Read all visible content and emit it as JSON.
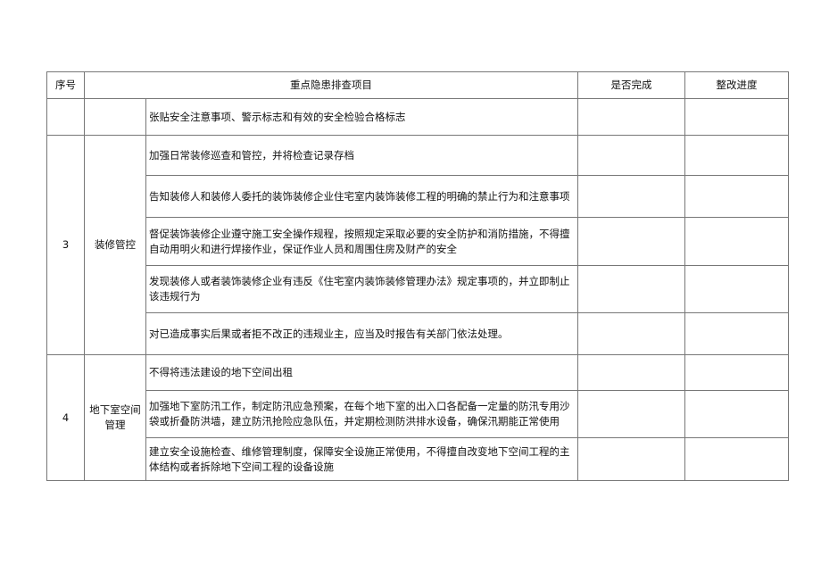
{
  "header": {
    "seq": "序号",
    "item": "重点隐患排查项目",
    "done": "是否完成",
    "progress": "整改进度"
  },
  "row_top": {
    "item": "张贴安全注意事项、警示标志和有效的安全检验合格标志"
  },
  "section3": {
    "seq": "3",
    "category": "装修管控",
    "items": [
      "加强日常装修巡查和管控，并将检查记录存档",
      "告知装修人和装修人委托的装饰装修企业住宅室内装饰装修工程的明确的禁止行为和注意事项",
      "督促装饰装修企业遵守施工安全操作规程，按照规定采取必要的安全防护和消防措施，不得擅自动用明火和进行焊接作业，保证作业人员和周围住房及财产的安全",
      "发现装修人或者装饰装修企业有违反《住宅室内装饰装修管理办法》规定事项的，并立即制止该违规行为",
      "对已造成事实后果或者拒不改正的违规业主，应当及时报告有关部门依法处理。"
    ]
  },
  "section4": {
    "seq": "4",
    "category": "地下室空间管理",
    "items": [
      "不得将违法建设的地下空间出租",
      "加强地下室防汛工作，制定防汛应急预案，在每个地下室的出入口各配备一定量的防汛专用沙袋或折叠防洪墙，建立防汛抢险应急队伍，并定期检测防洪排水设备，确保汛期能正常使用",
      "建立安全设施检查、维修管理制度，保障安全设施正常使用，不得擅自改变地下空间工程的主体结构或者拆除地下空间工程的设备设施"
    ]
  }
}
